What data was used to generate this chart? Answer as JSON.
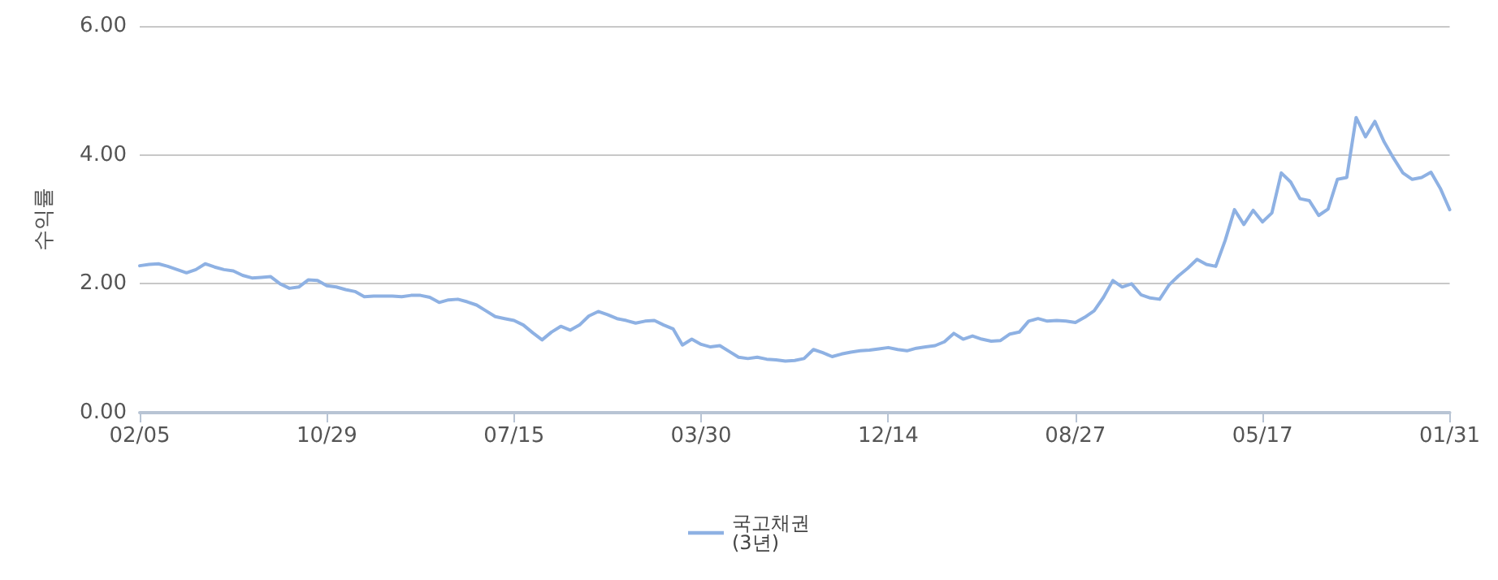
{
  "chart_data": {
    "type": "line",
    "ylabel": "수익률",
    "categories": [
      "02/05",
      null,
      null,
      null,
      null,
      null,
      null,
      null,
      null,
      null,
      null,
      null,
      null,
      null,
      null,
      null,
      null,
      null,
      null,
      null,
      "10/29",
      null,
      null,
      null,
      null,
      null,
      null,
      null,
      null,
      null,
      null,
      null,
      null,
      null,
      null,
      null,
      null,
      null,
      null,
      null,
      "07/15",
      null,
      null,
      null,
      null,
      null,
      null,
      null,
      null,
      null,
      null,
      null,
      null,
      null,
      null,
      null,
      null,
      null,
      null,
      null,
      "03/30",
      null,
      null,
      null,
      null,
      null,
      null,
      null,
      null,
      null,
      null,
      null,
      null,
      null,
      null,
      null,
      null,
      null,
      null,
      null,
      "12/14",
      null,
      null,
      null,
      null,
      null,
      null,
      null,
      null,
      null,
      null,
      null,
      null,
      null,
      null,
      null,
      null,
      null,
      null,
      null,
      "08/27",
      null,
      null,
      null,
      null,
      null,
      null,
      null,
      null,
      null,
      null,
      null,
      null,
      null,
      null,
      null,
      null,
      null,
      null,
      null,
      "05/17",
      null,
      null,
      null,
      null,
      null,
      null,
      null,
      null,
      null,
      null,
      null,
      null,
      null,
      null,
      null,
      null,
      null,
      null,
      null,
      "01/31"
    ],
    "series": [
      {
        "name": "국고채권\n(3년)",
        "color": "#8eb1e3",
        "values": [
          2.28,
          2.3,
          2.31,
          2.27,
          2.22,
          2.17,
          2.22,
          2.31,
          2.26,
          2.22,
          2.2,
          2.13,
          2.09,
          2.1,
          2.11,
          2.0,
          1.93,
          1.95,
          2.06,
          2.05,
          1.97,
          1.95,
          1.91,
          1.88,
          1.8,
          1.81,
          1.81,
          1.81,
          1.8,
          1.82,
          1.82,
          1.79,
          1.71,
          1.75,
          1.76,
          1.72,
          1.67,
          1.58,
          1.49,
          1.46,
          1.43,
          1.36,
          1.24,
          1.13,
          1.25,
          1.34,
          1.28,
          1.36,
          1.5,
          1.57,
          1.52,
          1.46,
          1.43,
          1.39,
          1.42,
          1.43,
          1.36,
          1.3,
          1.05,
          1.14,
          1.06,
          1.02,
          1.04,
          0.95,
          0.86,
          0.84,
          0.86,
          0.83,
          0.82,
          0.8,
          0.81,
          0.84,
          0.98,
          0.93,
          0.87,
          0.91,
          0.94,
          0.96,
          0.97,
          0.99,
          1.01,
          0.98,
          0.96,
          1.0,
          1.02,
          1.04,
          1.1,
          1.23,
          1.14,
          1.19,
          1.14,
          1.11,
          1.12,
          1.22,
          1.25,
          1.42,
          1.46,
          1.42,
          1.43,
          1.42,
          1.4,
          1.48,
          1.58,
          1.79,
          2.05,
          1.95,
          2.0,
          1.83,
          1.78,
          1.76,
          1.98,
          2.12,
          2.24,
          2.38,
          2.3,
          2.27,
          2.67,
          3.15,
          2.92,
          3.14,
          2.96,
          3.1,
          3.72,
          3.58,
          3.32,
          3.29,
          3.06,
          3.16,
          3.62,
          3.65,
          4.58,
          4.28,
          4.52,
          4.2,
          3.95,
          3.72,
          3.62,
          3.65,
          3.73,
          3.48,
          3.15
        ]
      }
    ],
    "ylim": [
      0,
      6
    ],
    "yticks": [
      {
        "value": 0,
        "label": "0.00"
      },
      {
        "value": 2,
        "label": "2.00"
      },
      {
        "value": 4,
        "label": "4.00"
      },
      {
        "value": 6,
        "label": "6.00"
      }
    ],
    "grid": "y",
    "legend": "bottom",
    "marker": "none",
    "line_style": "solid"
  }
}
